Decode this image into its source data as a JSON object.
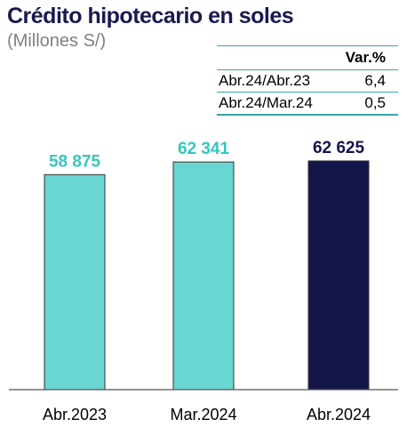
{
  "header": {
    "title": "Crédito hipotecario en soles",
    "subtitle": "(Millones S/)"
  },
  "variation_table": {
    "header": "Var.%",
    "rows": [
      {
        "period": "Abr.24/Abr.23",
        "value": "6,4"
      },
      {
        "period": "Abr.24/Mar.24",
        "value": "0,5"
      }
    ]
  },
  "chart_data": {
    "type": "bar",
    "title": "Crédito hipotecario en soles",
    "subtitle": "(Millones S/)",
    "categories": [
      "Abr.2023",
      "Mar.2024",
      "Abr.2024"
    ],
    "values": [
      58875,
      62341,
      62625
    ],
    "value_labels": [
      "58 875",
      "62 341",
      "62 625"
    ],
    "ylim": [
      0,
      64800
    ],
    "grid": false,
    "legend": "none",
    "colors": {
      "bar": [
        "#6ad6d2",
        "#6ad6d2",
        "#14154a"
      ],
      "label": [
        "#38c5bf",
        "#38c5bf",
        "#14154a"
      ]
    }
  }
}
